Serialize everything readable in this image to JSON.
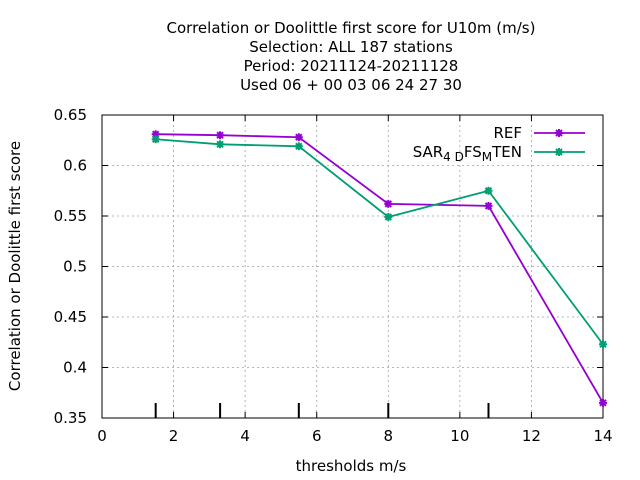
{
  "chart_data": {
    "type": "line",
    "title_lines": [
      "Correlation or Doolittle first score  for U10m (m/s)",
      "Selection: ALL    187 stations",
      "Period: 20211124-20211128",
      "Used  06 + 00 03 06 24 27 30"
    ],
    "xlabel": "thresholds m/s",
    "ylabel": "Correlation or Doolittle first score",
    "xlim": [
      0,
      14
    ],
    "ylim": [
      0.35,
      0.65
    ],
    "xticks": [
      0,
      2,
      4,
      6,
      8,
      10,
      12,
      14
    ],
    "yticks": [
      0.35,
      0.4,
      0.45,
      0.5,
      0.55,
      0.6,
      0.65
    ],
    "xtick_labels": [
      "0",
      "2",
      "4",
      "6",
      "8",
      "10",
      "12",
      "14"
    ],
    "ytick_labels": [
      "0.35",
      "0.4",
      "0.45",
      "0.5",
      "0.55",
      "0.6",
      "0.65"
    ],
    "grid": true,
    "legend_position": "top-right",
    "threshold_markers": [
      1.5,
      3.3,
      5.5,
      8.0,
      10.8
    ],
    "series": [
      {
        "name": "REF",
        "color": "#9400d3",
        "x": [
          1.5,
          3.3,
          5.5,
          8.0,
          10.8,
          14.0
        ],
        "y": [
          0.631,
          0.63,
          0.628,
          0.562,
          0.56,
          0.365
        ]
      },
      {
        "name": "SAR_4DFS_MTEN",
        "legend_parts": [
          {
            "text": "SAR",
            "sub": false
          },
          {
            "text": "4 D",
            "sub": true
          },
          {
            "text": "FS",
            "sub": false
          },
          {
            "text": "M",
            "sub": true
          },
          {
            "text": "TEN",
            "sub": false
          }
        ],
        "color": "#009e73",
        "x": [
          1.5,
          3.3,
          5.5,
          8.0,
          10.8,
          14.0
        ],
        "y": [
          0.626,
          0.621,
          0.619,
          0.549,
          0.575,
          0.423
        ]
      }
    ]
  }
}
